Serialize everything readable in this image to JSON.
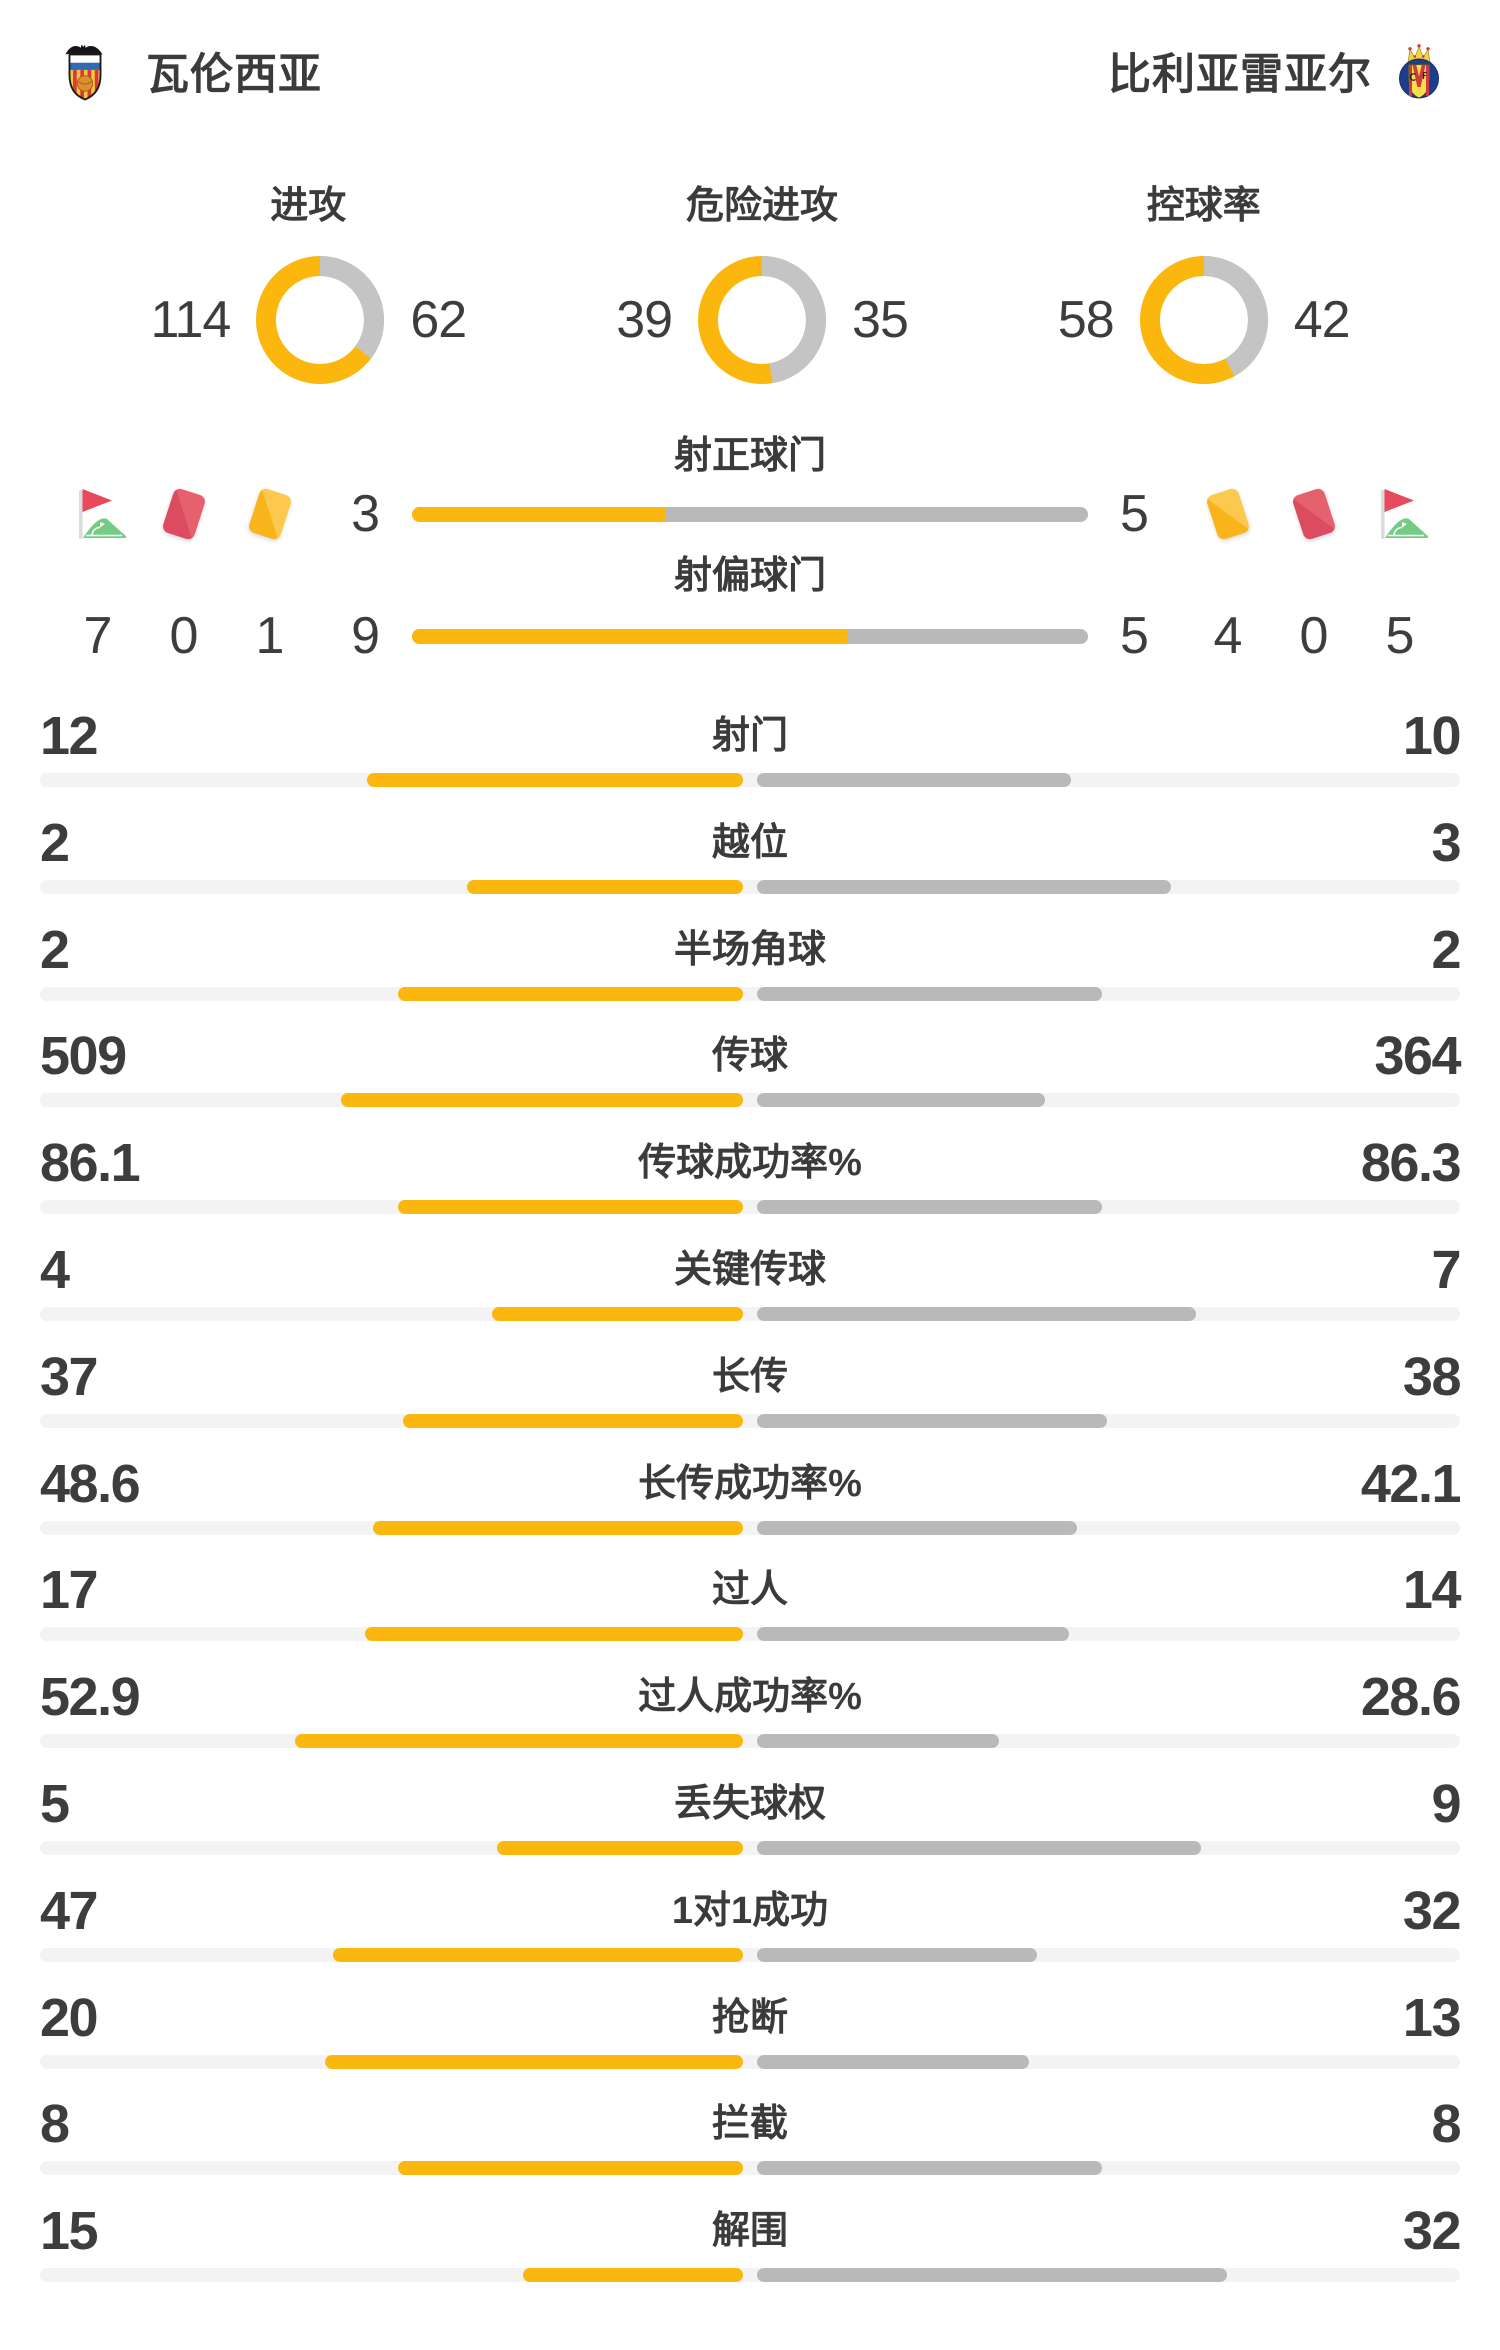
{
  "teams": {
    "home": {
      "name": "瓦伦西亚"
    },
    "away": {
      "name": "比利亚雷亚尔"
    }
  },
  "colors": {
    "home_accent": "#fbb70d",
    "away_accent": "#b9b9b9",
    "donut_gray": "#c4c4c4",
    "track": "#f3f3f3",
    "card_red": "#e25263",
    "card_yellow": "#fbba28",
    "flag_green": "#74cb84",
    "flag_red": "#e8495c"
  },
  "donuts": {
    "items": [
      {
        "label": "进攻",
        "home": 114,
        "away": 62
      },
      {
        "label": "危险进攻",
        "home": 39,
        "away": 35
      },
      {
        "label": "控球率",
        "home": 58,
        "away": 42
      }
    ]
  },
  "shots": {
    "rows": [
      {
        "label": "射正球门",
        "home": 3,
        "away": 5
      },
      {
        "label": "射偏球门",
        "home": 9,
        "away": 5
      }
    ]
  },
  "discipline": {
    "home": [
      {
        "icon": "corner-flag-icon",
        "count": 7
      },
      {
        "icon": "red-card-icon",
        "count": 0
      },
      {
        "icon": "yellow-card-icon",
        "count": 1
      }
    ],
    "away": [
      {
        "icon": "yellow-card-icon",
        "count": 4
      },
      {
        "icon": "red-card-icon",
        "count": 0
      },
      {
        "icon": "corner-flag-icon",
        "count": 5
      }
    ]
  },
  "stats": {
    "rows": [
      {
        "label": "射门",
        "home": 12,
        "away": 10
      },
      {
        "label": "越位",
        "home": 2,
        "away": 3
      },
      {
        "label": "半场角球",
        "home": 2,
        "away": 2
      },
      {
        "label": "传球",
        "home": 509,
        "away": 364
      },
      {
        "label": "传球成功率%",
        "home": 86.1,
        "away": 86.3
      },
      {
        "label": "关键传球",
        "home": 4,
        "away": 7
      },
      {
        "label": "长传",
        "home": 37,
        "away": 38
      },
      {
        "label": "长传成功率%",
        "home": 48.6,
        "away": 42.1
      },
      {
        "label": "过人",
        "home": 17,
        "away": 14
      },
      {
        "label": "过人成功率%",
        "home": 52.9,
        "away": 28.6
      },
      {
        "label": "丢失球权",
        "home": 5,
        "away": 9
      },
      {
        "label": "1对1成功",
        "home": 47,
        "away": 32
      },
      {
        "label": "抢断",
        "home": 20,
        "away": 13
      },
      {
        "label": "拦截",
        "home": 8,
        "away": 8
      },
      {
        "label": "解围",
        "home": 15,
        "away": 32
      }
    ]
  }
}
